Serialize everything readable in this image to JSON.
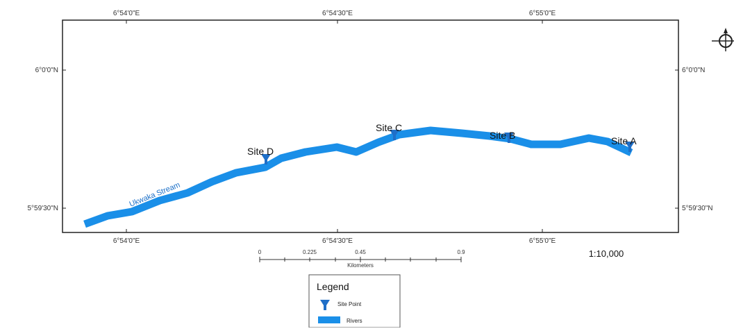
{
  "map": {
    "top_ticks": [
      "6°54'0\"E",
      "6°54'30\"E",
      "6°55'0\"E"
    ],
    "bottom_ticks": [
      "6°54'0\"E",
      "6°54'30\"E",
      "6°55'0\"E"
    ],
    "left_ticks": [
      "6°0'0\"N",
      "5°59'30\"N"
    ],
    "right_ticks": [
      "6°0'0\"N",
      "5°59'30\"N"
    ],
    "stream_label": "Ukwaka Stream",
    "sites": [
      {
        "label": "Site A"
      },
      {
        "label": "Site B"
      },
      {
        "label": "Site C"
      },
      {
        "label": "Site D"
      }
    ]
  },
  "scale_bar": {
    "labels": [
      "0",
      "0.225",
      "0.45",
      "0.9"
    ],
    "unit": "Kilometers",
    "ratio": "1:10,000"
  },
  "legend": {
    "title": "Legend",
    "site_point": "Site Point",
    "rivers": "Rivers"
  },
  "colors": {
    "river": "#1a8fe8",
    "marker": "#1f6fc8",
    "frame": "#222222"
  }
}
